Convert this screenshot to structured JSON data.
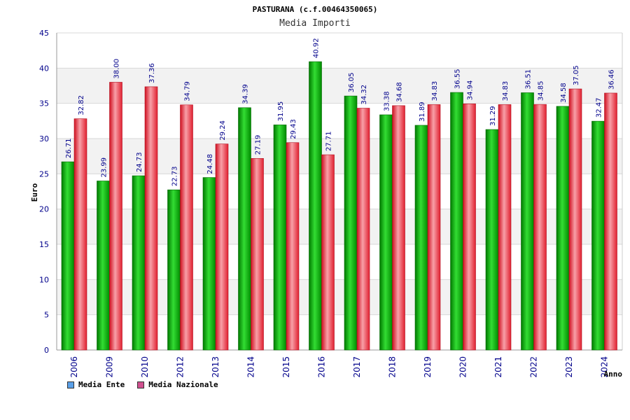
{
  "colors": {
    "ente": "#00b000",
    "nazionale": "#e8303a",
    "band": "#f2f2f2",
    "grid": "#d8d8d8",
    "tick_text": "#00008b",
    "legend_ente": "#5aa0e8",
    "legend_nazionale": "#d0508f"
  },
  "chart_data": {
    "type": "bar",
    "title": "PASTURANA (c.f.00464350065)",
    "subtitle": "Media Importi",
    "xlabel": "Anno",
    "ylabel": "Euro",
    "ylim": [
      0,
      45
    ],
    "yticks": [
      "0",
      "5",
      "10",
      "15",
      "20",
      "25",
      "30",
      "35",
      "40",
      "45"
    ],
    "categories": [
      "2006",
      "2009",
      "2010",
      "2012",
      "2013",
      "2014",
      "2015",
      "2016",
      "2017",
      "2018",
      "2019",
      "2020",
      "2021",
      "2022",
      "2023",
      "2024"
    ],
    "series": [
      {
        "name": "Media Ente",
        "values": [
          26.71,
          23.99,
          24.73,
          22.73,
          24.48,
          34.39,
          31.95,
          40.92,
          36.05,
          33.38,
          31.89,
          36.55,
          31.29,
          36.51,
          34.58,
          32.47
        ],
        "labels": [
          "26.71",
          "23.99",
          "24.73",
          "22.73",
          "24.48",
          "34.39",
          "31.95",
          "40.92",
          "36.05",
          "33.38",
          "31.89",
          "36.55",
          "31.29",
          "36.51",
          "34.58",
          "32.47"
        ]
      },
      {
        "name": "Media Nazionale",
        "values": [
          32.82,
          38.0,
          37.36,
          34.79,
          29.24,
          27.19,
          29.43,
          27.71,
          34.32,
          34.68,
          34.83,
          34.94,
          34.83,
          34.85,
          37.05,
          36.46
        ],
        "labels": [
          "32.82",
          "38.00",
          "37.36",
          "34.79",
          "29.24",
          "27.19",
          "29.43",
          "27.71",
          "34.32",
          "34.68",
          "34.83",
          "34.94",
          "34.83",
          "34.85",
          "37.05",
          "36.46"
        ]
      }
    ],
    "legend": [
      "Media Ente",
      "Media Nazionale"
    ],
    "grid": true,
    "legend_position": "bottom-left"
  }
}
